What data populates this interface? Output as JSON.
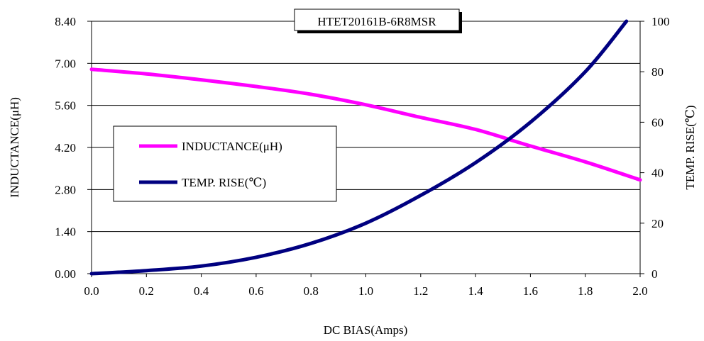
{
  "chart_data": {
    "type": "line",
    "title": "HTET20161B-6R8MSR",
    "xlabel": "DC BIAS(Amps)",
    "ylabel_left": "INDUCTANCE(μH)",
    "ylabel_right": "TEMP. RISE(℃)",
    "xlim": [
      0.0,
      2.0
    ],
    "ylim_left": [
      0.0,
      8.4
    ],
    "ylim_right": [
      0,
      100
    ],
    "x_ticks": [
      "0.0",
      "0.2",
      "0.4",
      "0.6",
      "0.8",
      "1.0",
      "1.2",
      "1.4",
      "1.6",
      "1.8",
      "2.0"
    ],
    "y_left_ticks": [
      "0.00",
      "1.40",
      "2.80",
      "4.20",
      "5.60",
      "7.00",
      "8.40"
    ],
    "y_right_ticks": [
      "0",
      "20",
      "40",
      "60",
      "80",
      "100"
    ],
    "grid": "horizontal",
    "legend_position": "left-center",
    "series": [
      {
        "name": "INDUCTANCE(μH)",
        "axis": "left",
        "color": "#ff00ff",
        "x": [
          0.0,
          0.2,
          0.4,
          0.6,
          0.8,
          1.0,
          1.2,
          1.4,
          1.6,
          1.8,
          2.0
        ],
        "y": [
          6.8,
          6.65,
          6.45,
          6.23,
          5.97,
          5.62,
          5.2,
          4.8,
          4.25,
          3.72,
          3.12
        ]
      },
      {
        "name": "TEMP. RISE(℃)",
        "axis": "right",
        "color": "#000080",
        "x": [
          0.0,
          0.2,
          0.4,
          0.6,
          0.8,
          1.0,
          1.2,
          1.4,
          1.6,
          1.8,
          1.95
        ],
        "y": [
          0,
          1.2,
          3.0,
          6.5,
          12,
          20,
          31,
          44,
          60,
          80,
          100
        ]
      }
    ]
  }
}
